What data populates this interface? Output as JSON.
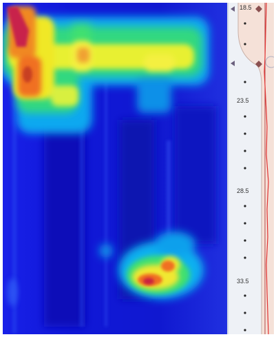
{
  "depth_scale": {
    "labels": [
      "18.5",
      "23.5",
      "28.5",
      "33.5"
    ]
  },
  "colors": {
    "background_low": "#1414dc",
    "cool": "#00c8ff",
    "mid": "#30e070",
    "warm": "#f0f020",
    "hot": "#f07020",
    "peak": "#d02060",
    "panel": "#f5e1d8",
    "trace": "#e03030",
    "marker": "#6a5f7d"
  }
}
